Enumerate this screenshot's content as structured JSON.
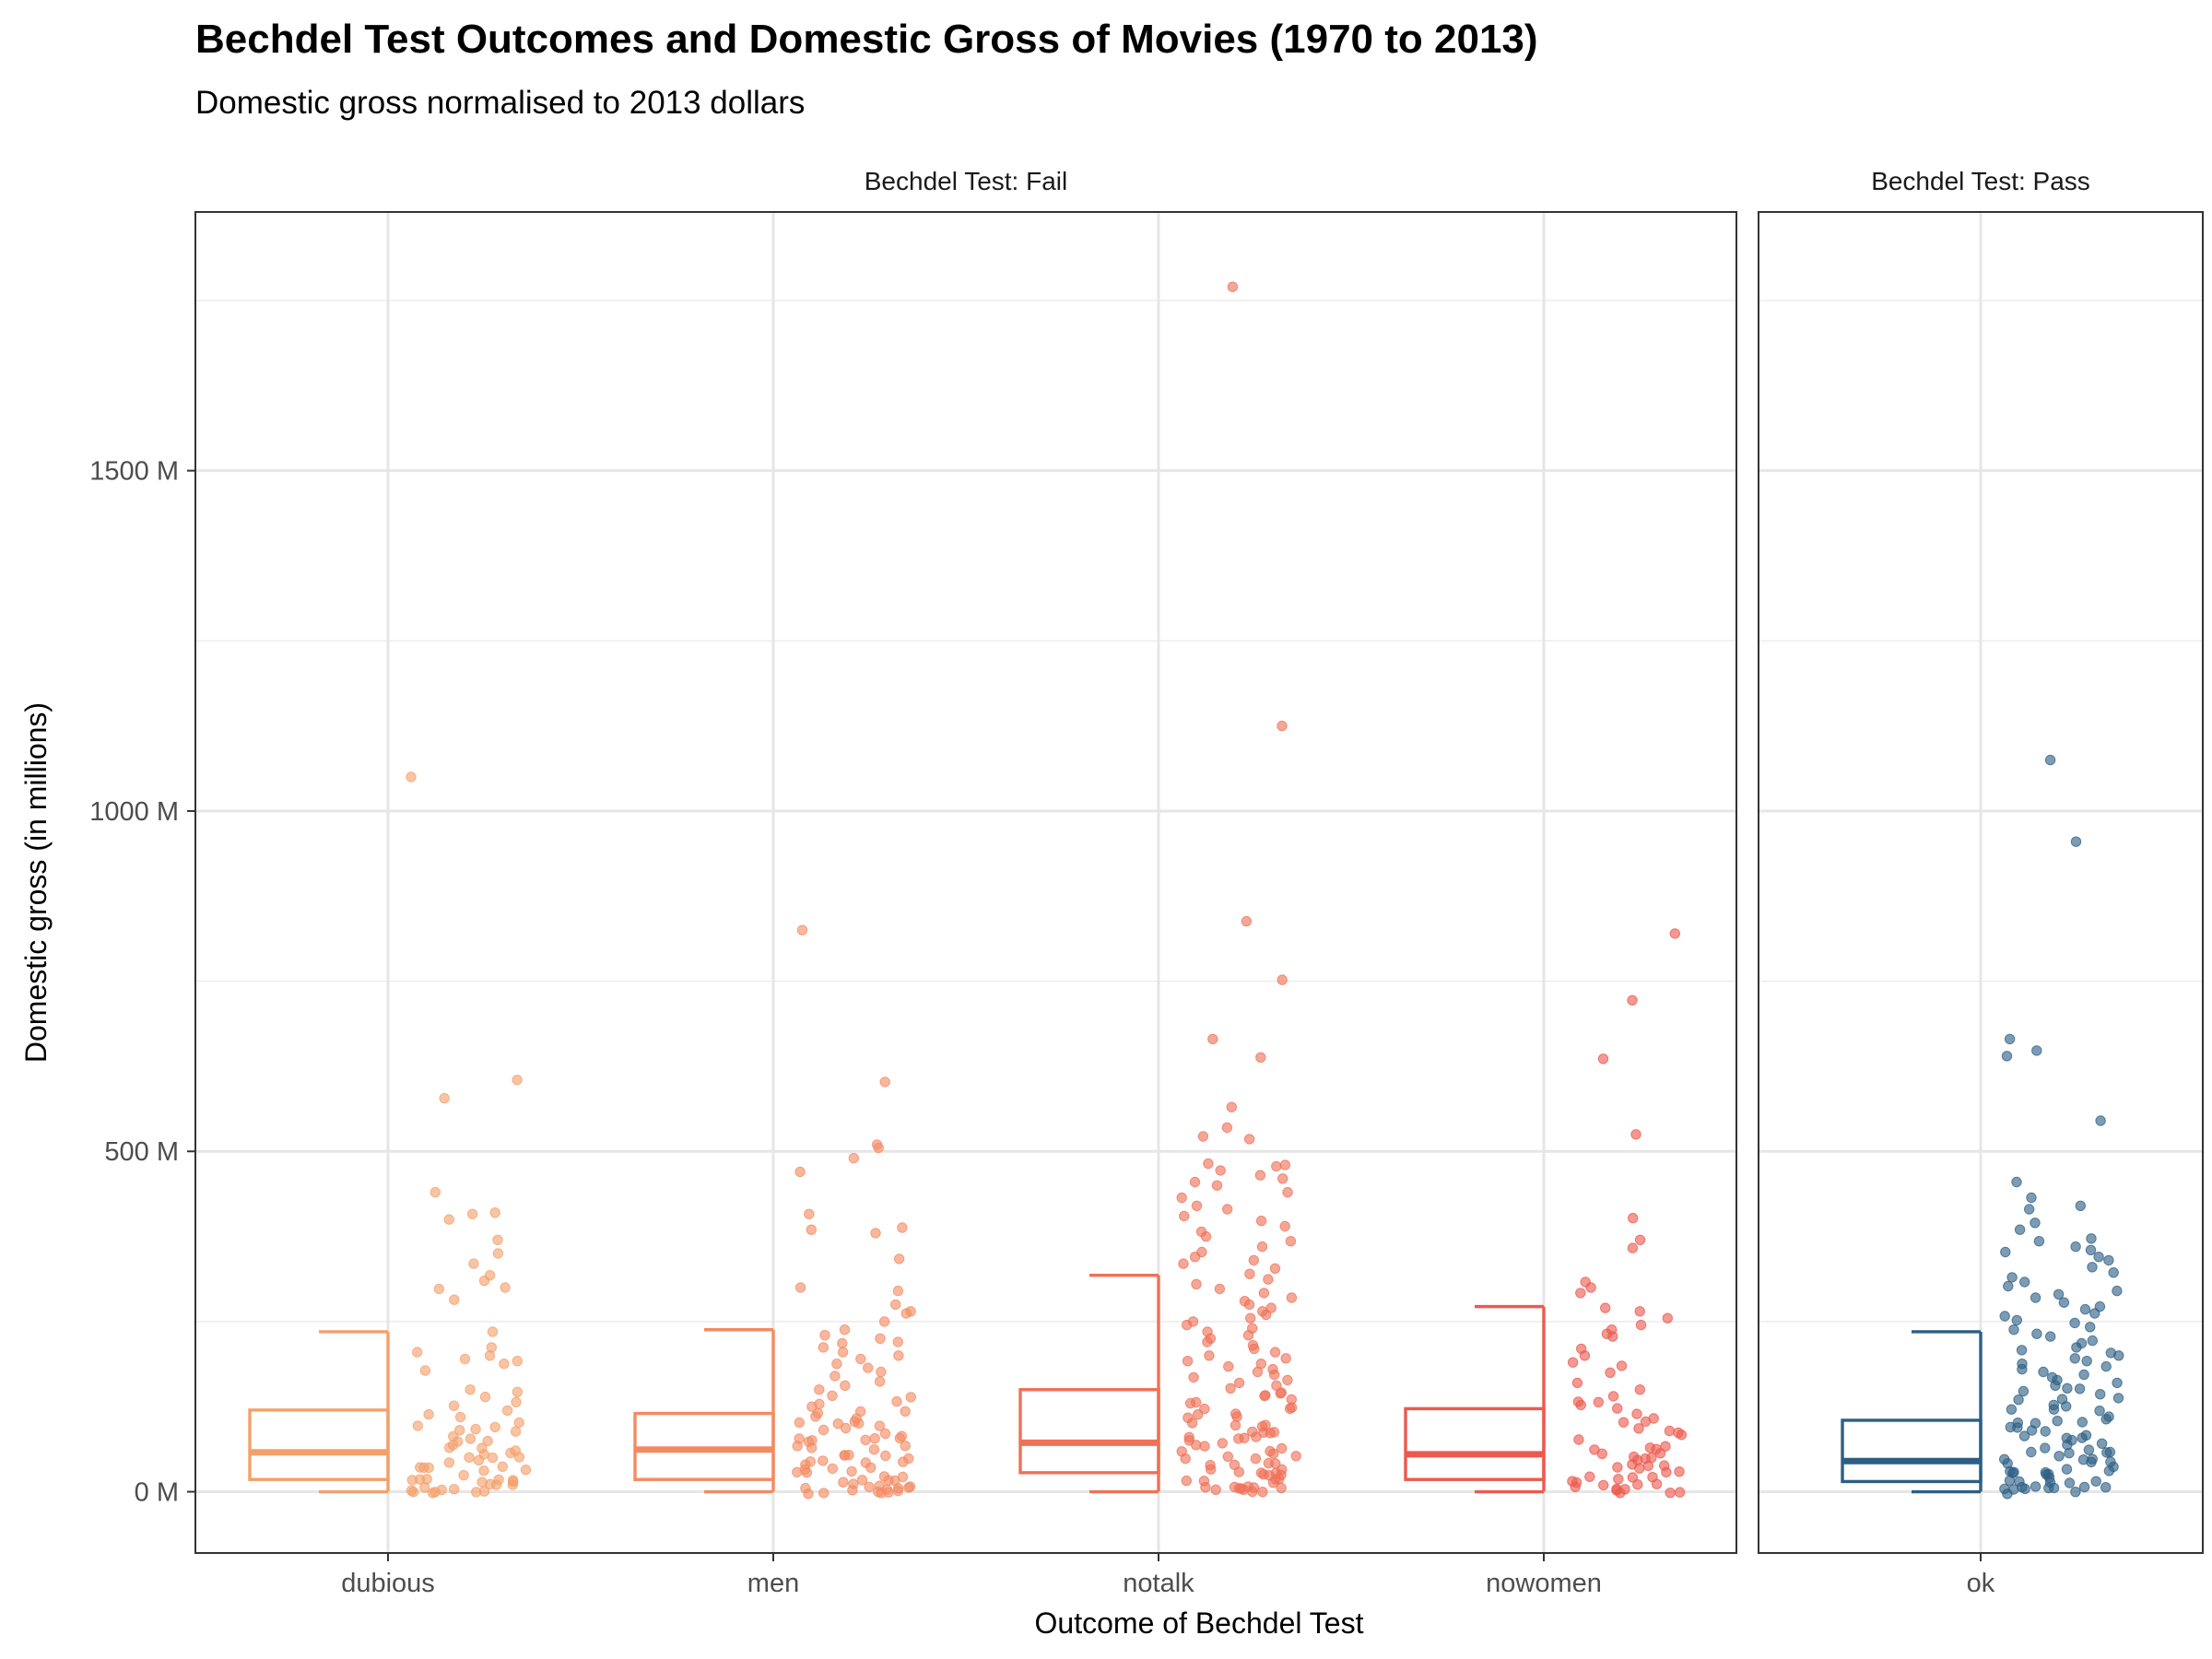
{
  "chart_data": {
    "type": "scatter",
    "title": "Bechdel Test Outcomes and Domestic Gross of Movies (1970 to 2013)",
    "subtitle": "Domestic gross normalised to 2013 dollars",
    "xlabel": "Outcome of Bechdel Test",
    "ylabel": "Domestic gross (in millions)",
    "ylim": [
      -90,
      1880
    ],
    "y_ticks": [
      0,
      500,
      1000,
      1500
    ],
    "y_tick_labels": [
      "0 M",
      "500 M",
      "1000 M",
      "1500 M"
    ],
    "grid": true,
    "legend": "none",
    "overlay": "boxplot",
    "panels": [
      {
        "label": "Bechdel Test: Fail",
        "categories": [
          "dubious",
          "men",
          "notalk",
          "nowomen"
        ]
      },
      {
        "label": "Bechdel Test: Pass",
        "categories": [
          "ok"
        ]
      }
    ],
    "series": [
      {
        "category": "dubious",
        "panel": 0,
        "color": "#F4A06A",
        "box": {
          "whisker_low": 0,
          "q1": 18,
          "median": 58,
          "q3": 120,
          "whisker_high": 235
        },
        "points": [
          1050,
          605,
          578,
          440,
          410,
          408,
          400,
          370,
          350,
          335,
          318,
          310,
          300,
          298,
          282,
          235,
          212,
          205,
          200,
          195,
          192,
          188,
          178,
          150,
          148,
          140,
          135,
          125,
          118,
          112,
          108,
          102,
          98,
          95,
          92,
          88,
          85,
          80,
          78,
          75,
          72,
          68,
          65,
          62,
          60,
          58,
          55,
          52,
          50,
          48,
          45,
          42,
          40,
          38,
          35,
          32,
          30,
          28,
          25,
          22,
          20,
          18,
          16,
          15,
          14,
          12,
          10,
          9,
          8,
          7,
          6,
          5,
          4,
          3,
          2,
          1,
          0.5,
          0.2
        ]
      },
      {
        "category": "men",
        "panel": 0,
        "color": "#F38B62",
        "box": {
          "whisker_low": 0,
          "q1": 18,
          "median": 62,
          "q3": 115,
          "whisker_high": 238
        },
        "points": [
          825,
          602,
          510,
          505,
          490,
          470,
          408,
          388,
          385,
          380,
          342,
          300,
          295,
          275,
          265,
          262,
          250,
          238,
          230,
          225,
          220,
          218,
          212,
          205,
          200,
          195,
          188,
          182,
          176,
          170,
          162,
          156,
          150,
          145,
          140,
          136,
          130,
          125,
          120,
          118,
          115,
          112,
          108,
          105,
          102,
          100,
          98,
          95,
          92,
          90,
          88,
          85,
          82,
          80,
          78,
          75,
          72,
          70,
          68,
          65,
          62,
          60,
          58,
          55,
          52,
          50,
          48,
          46,
          44,
          42,
          40,
          38,
          36,
          34,
          32,
          30,
          28,
          26,
          24,
          22,
          20,
          18,
          16,
          14,
          12,
          10,
          9,
          8,
          7,
          6,
          5,
          4,
          3,
          2,
          1,
          0.5,
          0.3,
          0.2,
          0.1
        ]
      },
      {
        "category": "notalk",
        "panel": 0,
        "color": "#EF7157",
        "box": {
          "whisker_low": 0,
          "q1": 28,
          "median": 72,
          "q3": 150,
          "whisker_high": 318
        },
        "points": [
          1770,
          1125,
          838,
          752,
          665,
          638,
          565,
          535,
          522,
          518,
          482,
          480,
          478,
          472,
          465,
          460,
          455,
          450,
          440,
          432,
          420,
          415,
          405,
          398,
          390,
          382,
          375,
          368,
          360,
          352,
          345,
          340,
          335,
          328,
          320,
          312,
          305,
          298,
          292,
          285,
          280,
          275,
          270,
          265,
          260,
          255,
          250,
          245,
          240,
          235,
          230,
          225,
          220,
          215,
          210,
          205,
          200,
          196,
          192,
          188,
          184,
          180,
          176,
          172,
          168,
          164,
          160,
          156,
          152,
          148,
          145,
          142,
          138,
          135,
          132,
          128,
          125,
          122,
          118,
          115,
          112,
          108,
          105,
          102,
          100,
          98,
          95,
          92,
          90,
          88,
          85,
          82,
          80,
          78,
          75,
          72,
          70,
          68,
          65,
          62,
          60,
          58,
          55,
          52,
          50,
          48,
          46,
          44,
          42,
          40,
          38,
          36,
          34,
          32,
          30,
          28,
          26,
          24,
          22,
          20,
          18,
          16,
          14,
          12,
          10,
          9,
          8,
          7,
          6,
          5,
          4,
          3,
          2,
          1,
          0.5
        ]
      },
      {
        "category": "nowomen",
        "panel": 0,
        "color": "#EC5A4F",
        "box": {
          "whisker_low": 0,
          "q1": 18,
          "median": 55,
          "q3": 122,
          "whisker_high": 272
        },
        "points": [
          820,
          722,
          636,
          525,
          402,
          370,
          358,
          308,
          300,
          292,
          270,
          265,
          255,
          245,
          238,
          232,
          228,
          210,
          200,
          190,
          185,
          175,
          160,
          150,
          140,
          135,
          130,
          125,
          120,
          115,
          110,
          105,
          100,
          95,
          90,
          85,
          80,
          75,
          70,
          65,
          62,
          60,
          58,
          55,
          52,
          50,
          48,
          45,
          42,
          40,
          38,
          35,
          32,
          30,
          28,
          25,
          22,
          20,
          18,
          16,
          14,
          12,
          10,
          8,
          6,
          5,
          4,
          3,
          2,
          1,
          0.5
        ]
      },
      {
        "category": "ok",
        "panel": 1,
        "color": "#2D5F84",
        "box": {
          "whisker_low": 0,
          "q1": 15,
          "median": 45,
          "q3": 105,
          "whisker_high": 235
        },
        "points": [
          1075,
          955,
          665,
          648,
          640,
          545,
          455,
          432,
          420,
          415,
          395,
          385,
          372,
          368,
          360,
          355,
          352,
          345,
          340,
          330,
          322,
          315,
          308,
          302,
          295,
          290,
          285,
          278,
          272,
          268,
          262,
          258,
          252,
          248,
          242,
          238,
          232,
          228,
          222,
          218,
          212,
          208,
          204,
          200,
          196,
          192,
          188,
          184,
          180,
          176,
          172,
          168,
          164,
          160,
          156,
          152,
          148,
          145,
          142,
          138,
          135,
          132,
          128,
          125,
          122,
          118,
          115,
          112,
          108,
          105,
          102,
          100,
          98,
          95,
          92,
          90,
          88,
          85,
          82,
          80,
          78,
          75,
          72,
          70,
          68,
          65,
          62,
          60,
          58,
          55,
          52,
          50,
          48,
          46,
          44,
          42,
          40,
          38,
          36,
          34,
          32,
          30,
          28,
          26,
          24,
          22,
          20,
          18,
          16,
          14,
          12,
          10,
          9,
          8,
          7,
          6,
          5,
          4,
          3,
          2,
          1,
          0.5,
          0.2
        ]
      }
    ]
  }
}
